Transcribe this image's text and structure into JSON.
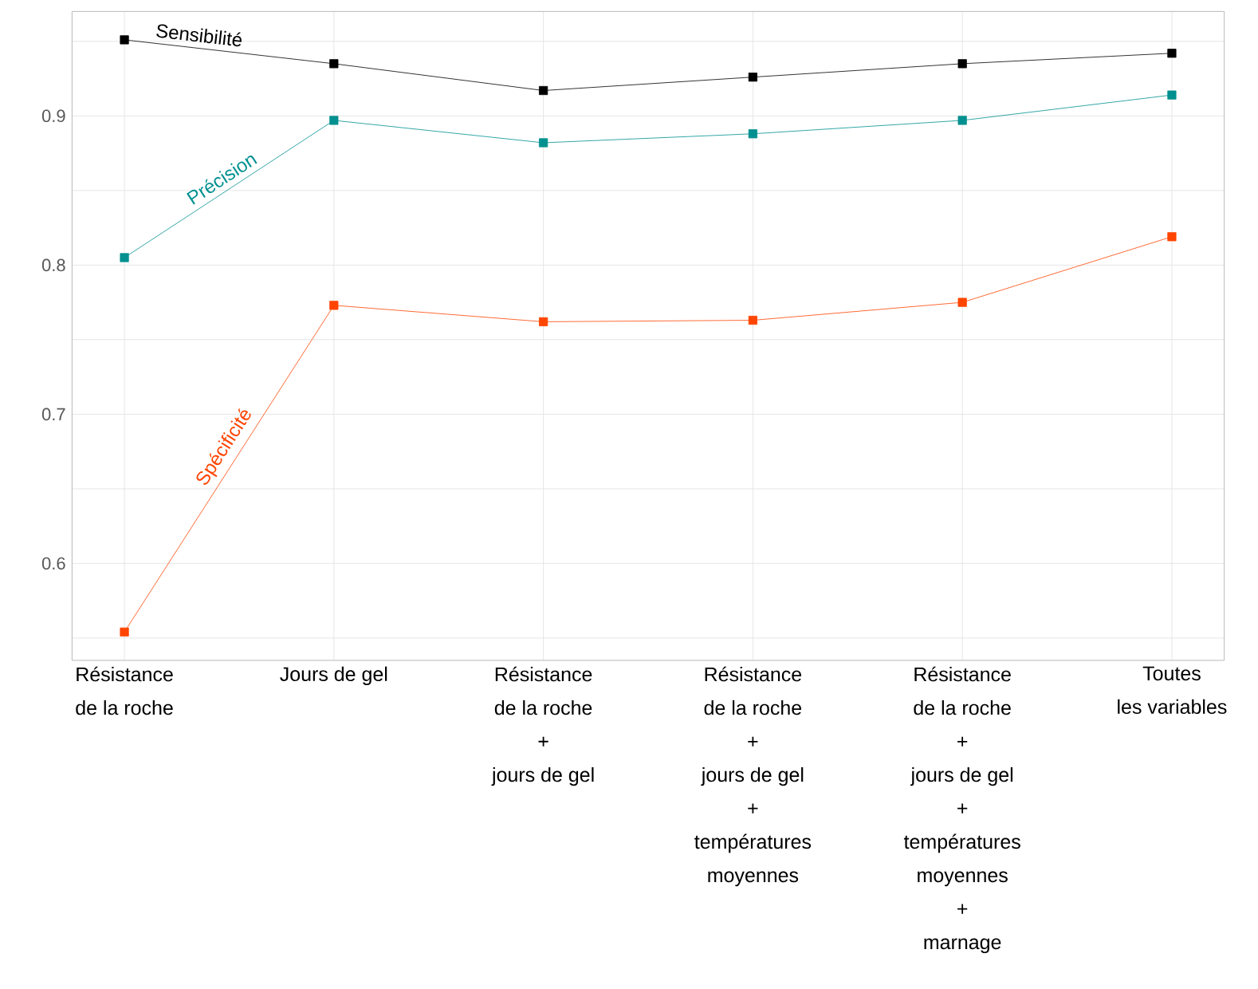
{
  "chart_data": {
    "type": "line",
    "categories": [
      "Résistance\nde la roche",
      "Jours de gel",
      "Résistance\nde la roche\n+\njours de gel",
      "Résistance\nde la roche\n+\njours de gel\n+\ntempératures\nmoyennes",
      "Résistance\nde la roche\n+\njours de gel\n+\ntempératures\nmoyennes\n+\nmarnage",
      "Toutes\nles variables"
    ],
    "series": [
      {
        "name": "Sensibilité",
        "color": "#000000",
        "values": [
          0.951,
          0.935,
          0.917,
          0.926,
          0.935,
          0.942
        ]
      },
      {
        "name": "Précision",
        "color": "#009090",
        "values": [
          0.805,
          0.897,
          0.882,
          0.888,
          0.897,
          0.914
        ]
      },
      {
        "name": "Spécificité",
        "color": "#ff4500",
        "values": [
          0.554,
          0.773,
          0.762,
          0.763,
          0.775,
          0.819
        ]
      }
    ],
    "ylim": [
      0.535,
      0.97
    ],
    "yticks": [
      {
        "value": 0.55,
        "label": null
      },
      0.6,
      {
        "value": 0.65,
        "label": null
      },
      0.7,
      {
        "value": 0.75,
        "label": null
      },
      0.8,
      {
        "value": 0.85,
        "label": null
      },
      0.9,
      {
        "value": 0.95,
        "label": null
      }
    ],
    "grid": true,
    "marker": "square",
    "line_style": "solid"
  }
}
